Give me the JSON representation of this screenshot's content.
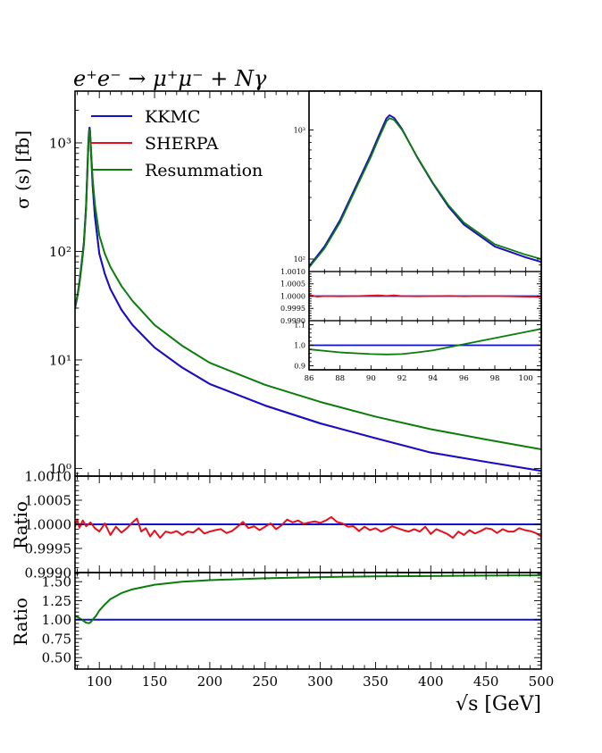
{
  "chart_data": {
    "type": "line",
    "title": "e⁺e⁻ → μ⁺μ⁻ + Nγ",
    "xlabel": "√s [GeV]",
    "colors": {
      "KKMC": "#1010d0",
      "SHERPA": "#e8101c",
      "Resummation": "#0a7d0a"
    },
    "legend": {
      "placement": "upper-left",
      "entries": [
        "KKMC",
        "SHERPA",
        "Resummation"
      ]
    },
    "panels": [
      {
        "id": "main",
        "ylabel": "σ (s) [fb]",
        "yscale": "log",
        "xlim": [
          78,
          500
        ],
        "ylim": [
          0.85,
          3000
        ],
        "yticks": [
          {
            "v": 1,
            "label": "10⁰"
          },
          {
            "v": 10,
            "label": "10¹"
          },
          {
            "v": 100,
            "label": "10²"
          },
          {
            "v": 1000,
            "label": "10³"
          }
        ],
        "series": [
          {
            "name": "SHERPA",
            "x": [
              78,
              80,
              82,
              84,
              86,
              88,
              89,
              90,
              90.5,
              91,
              91.2,
              91.5,
              92,
              93,
              94,
              96,
              100,
              105,
              110,
              120,
              130,
              150,
              175,
              200,
              250,
              300,
              350,
              400,
              450,
              500
            ],
            "y": [
              30,
              38,
              52,
              78,
              120,
              260,
              500,
              950,
              1200,
              1360,
              1380,
              1300,
              1050,
              640,
              400,
              210,
              95,
              62,
              45,
              29,
              21,
              13,
              8.5,
              6.0,
              3.8,
              2.6,
              1.9,
              1.4,
              1.15,
              0.95
            ]
          },
          {
            "name": "KKMC",
            "x": [
              78,
              80,
              82,
              84,
              86,
              88,
              89,
              90,
              90.5,
              91,
              91.2,
              91.5,
              92,
              93,
              94,
              96,
              100,
              105,
              110,
              120,
              130,
              150,
              175,
              200,
              250,
              300,
              350,
              400,
              450,
              500
            ],
            "y": [
              30,
              38,
              52,
              78,
              120,
              260,
              500,
              950,
              1200,
              1360,
              1380,
              1300,
              1050,
              640,
              400,
              210,
              95,
              62,
              45,
              29,
              21,
              13,
              8.5,
              6.0,
              3.8,
              2.6,
              1.9,
              1.4,
              1.15,
              0.95
            ]
          },
          {
            "name": "Resummation",
            "x": [
              78,
              80,
              82,
              84,
              86,
              88,
              89,
              90,
              90.5,
              91,
              91.2,
              91.5,
              92,
              93,
              94,
              96,
              100,
              105,
              110,
              120,
              130,
              150,
              175,
              200,
              250,
              300,
              350,
              400,
              450,
              500
            ],
            "y": [
              31,
              38,
              50,
              74,
              115,
              245,
              470,
              880,
              1120,
              1290,
              1320,
              1270,
              1060,
              690,
              460,
              270,
              140,
              95,
              72,
              48,
              35,
              21,
              13.5,
              9.4,
              5.9,
              4.1,
              3.0,
              2.3,
              1.85,
              1.5
            ]
          }
        ]
      },
      {
        "id": "ratio1",
        "ylabel": "Ratio",
        "yscale": "linear",
        "ylim": [
          0.999,
          1.001
        ],
        "yticks": [
          {
            "v": 0.999,
            "label": "0.9990"
          },
          {
            "v": 0.9995,
            "label": "0.9995"
          },
          {
            "v": 1.0,
            "label": "1.0000"
          },
          {
            "v": 1.0005,
            "label": "1.0005"
          },
          {
            "v": 1.001,
            "label": "1.0010"
          }
        ],
        "series": [
          {
            "name": "KKMC",
            "x": [
              78,
              500
            ],
            "y": [
              1.0,
              1.0
            ]
          },
          {
            "name": "SHERPA",
            "x": [
              78,
              80,
              82,
              85,
              88,
              92,
              96,
              100,
              105,
              110,
              115,
              120,
              125,
              130,
              134,
              138,
              142,
              146,
              150,
              155,
              160,
              165,
              170,
              175,
              180,
              185,
              190,
              195,
              200,
              205,
              210,
              215,
              220,
              225,
              230,
              235,
              240,
              245,
              250,
              255,
              260,
              265,
              270,
              275,
              280,
              285,
              290,
              295,
              300,
              305,
              310,
              315,
              320,
              325,
              330,
              335,
              340,
              345,
              350,
              355,
              360,
              365,
              370,
              375,
              380,
              385,
              390,
              395,
              400,
              405,
              410,
              415,
              420,
              425,
              430,
              435,
              440,
              445,
              450,
              455,
              460,
              465,
              470,
              475,
              480,
              485,
              490,
              495,
              500
            ],
            "y": [
              0.99995,
              1.0001,
              0.99993,
              1.00008,
              0.99996,
              1.00004,
              0.99992,
              0.99985,
              1.00002,
              0.99978,
              0.99995,
              0.99983,
              0.99992,
              1.00004,
              1.00012,
              0.99985,
              0.99992,
              0.99975,
              0.99987,
              0.99972,
              0.99985,
              0.99982,
              0.99986,
              0.99978,
              0.99985,
              0.99983,
              0.99992,
              0.99981,
              0.99985,
              0.99988,
              0.9999,
              0.99982,
              0.99986,
              0.99995,
              1.00005,
              0.99992,
              0.99996,
              0.99988,
              0.99995,
              1.00002,
              0.9999,
              0.99998,
              1.0001,
              1.00004,
              1.00008,
              1.00001,
              1.00004,
              1.00006,
              1.00003,
              1.00008,
              1.00015,
              1.00005,
              1.00002,
              0.99995,
              0.99996,
              0.99986,
              0.99995,
              0.99988,
              0.99992,
              0.99985,
              0.9999,
              0.99996,
              0.99992,
              0.99988,
              0.99985,
              0.9999,
              0.99985,
              0.99995,
              0.9998,
              0.9999,
              0.99985,
              0.9998,
              0.99972,
              0.99985,
              0.99978,
              0.99988,
              0.99981,
              0.99986,
              0.99992,
              0.9999,
              0.99982,
              0.9999,
              0.99985,
              0.99985,
              0.99992,
              0.99988,
              0.99986,
              0.99982,
              0.99975
            ]
          }
        ]
      },
      {
        "id": "ratio2",
        "ylabel": "Ratio",
        "yscale": "linear",
        "ylim": [
          0.35,
          1.62
        ],
        "yticks": [
          {
            "v": 0.5,
            "label": "0.50"
          },
          {
            "v": 0.75,
            "label": "0.75"
          },
          {
            "v": 1.0,
            "label": "1.00"
          },
          {
            "v": 1.25,
            "label": "1.25"
          },
          {
            "v": 1.5,
            "label": "1.50"
          }
        ],
        "series": [
          {
            "name": "KKMC",
            "x": [
              78,
              500
            ],
            "y": [
              1.0,
              1.0
            ]
          },
          {
            "name": "Resummation",
            "x": [
              78,
              82,
              86,
              88,
              90,
              91,
              92,
              94,
              97,
              100,
              105,
              110,
              120,
              130,
              150,
              175,
              200,
              250,
              300,
              350,
              400,
              450,
              500
            ],
            "y": [
              1.05,
              1.02,
              0.98,
              0.96,
              0.955,
              0.955,
              0.965,
              1.0,
              1.05,
              1.12,
              1.2,
              1.27,
              1.35,
              1.4,
              1.46,
              1.5,
              1.52,
              1.545,
              1.56,
              1.57,
              1.575,
              1.58,
              1.585
            ]
          }
        ]
      }
    ],
    "xticks_main": [
      100,
      150,
      200,
      250,
      300,
      350,
      400,
      450,
      500
    ],
    "inset": {
      "xlim": [
        86,
        101
      ],
      "xticks": [
        86,
        88,
        90,
        92,
        94,
        96,
        98,
        100
      ],
      "panels": [
        {
          "id": "inset_main",
          "yscale": "log",
          "ylim": [
            80,
            2000
          ],
          "yticks": [
            {
              "v": 100,
              "label": "10²"
            },
            {
              "v": 1000,
              "label": "10³"
            }
          ],
          "series": [
            {
              "name": "SHERPA",
              "x": [
                86,
                87,
                88,
                89,
                90,
                90.5,
                91,
                91.2,
                91.5,
                92,
                93,
                94,
                95,
                96,
                98,
                100,
                101
              ],
              "y": [
                88,
                125,
                200,
                360,
                650,
                900,
                1230,
                1300,
                1240,
                1020,
                610,
                385,
                255,
                185,
                125,
                103,
                95
              ]
            },
            {
              "name": "KKMC",
              "x": [
                86,
                87,
                88,
                89,
                90,
                90.5,
                91,
                91.2,
                91.5,
                92,
                93,
                94,
                95,
                96,
                98,
                100,
                101
              ],
              "y": [
                88,
                125,
                200,
                360,
                650,
                900,
                1230,
                1300,
                1240,
                1020,
                610,
                385,
                255,
                185,
                125,
                103,
                95
              ]
            },
            {
              "name": "Resummation",
              "x": [
                86,
                87,
                88,
                89,
                90,
                90.5,
                91,
                91.2,
                91.5,
                92,
                93,
                94,
                95,
                96,
                98,
                100,
                101
              ],
              "y": [
                86,
                121,
                192,
                345,
                620,
                860,
                1165,
                1235,
                1195,
                1005,
                615,
                390,
                262,
                192,
                130,
                108,
                100
              ]
            }
          ]
        },
        {
          "id": "inset_ratio1",
          "yscale": "linear",
          "ylim": [
            0.999,
            1.001
          ],
          "yticks": [
            {
              "v": 0.999,
              "label": "0.9990"
            },
            {
              "v": 0.9995,
              "label": "0.9995"
            },
            {
              "v": 1.0,
              "label": "1.0000"
            },
            {
              "v": 1.0005,
              "label": "1.0005"
            },
            {
              "v": 1.001,
              "label": "1.0010"
            }
          ],
          "series": [
            {
              "name": "KKMC",
              "x": [
                86,
                101
              ],
              "y": [
                1.0,
                1.0
              ]
            },
            {
              "name": "SHERPA",
              "x": [
                86,
                86.5,
                87,
                88,
                89,
                90,
                90.5,
                91,
                91.5,
                92,
                93,
                94,
                95,
                96,
                97,
                98,
                99,
                100,
                101
              ],
              "y": [
                1.00005,
                0.99998,
                1.0,
                0.99999,
                1.0,
                1.00002,
                1.00003,
                1.00001,
                1.00003,
                1.0,
                0.99999,
                1.0,
                1.00001,
                0.99999,
                1.0,
                1.0,
                0.99999,
                0.99998,
                0.99997
              ]
            }
          ]
        },
        {
          "id": "inset_ratio2",
          "yscale": "linear",
          "ylim": [
            0.88,
            1.12
          ],
          "yticks": [
            {
              "v": 0.9,
              "label": "0.9"
            },
            {
              "v": 1.0,
              "label": "1.0"
            },
            {
              "v": 1.1,
              "label": "1.1"
            }
          ],
          "series": [
            {
              "name": "KKMC",
              "x": [
                86,
                101
              ],
              "y": [
                1.0,
                1.0
              ]
            },
            {
              "name": "Resummation",
              "x": [
                86,
                88,
                90,
                91,
                92,
                93,
                94,
                96,
                98,
                100,
                101
              ],
              "y": [
                0.98,
                0.965,
                0.957,
                0.955,
                0.957,
                0.965,
                0.975,
                1.005,
                1.035,
                1.065,
                1.08
              ]
            }
          ]
        }
      ]
    }
  }
}
